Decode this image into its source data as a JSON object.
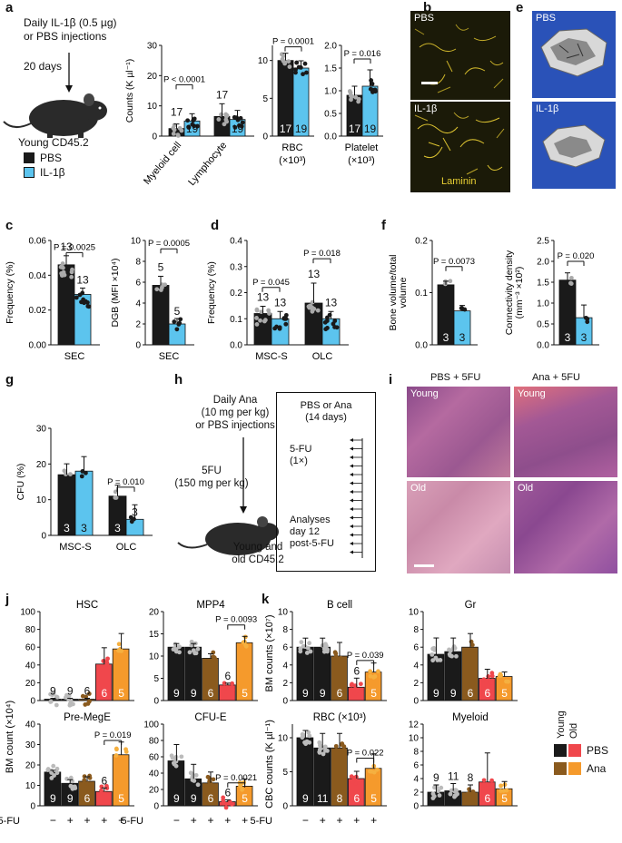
{
  "panels": {
    "a": "a",
    "b": "b",
    "e": "e",
    "c": "c",
    "d": "d",
    "f": "f",
    "g": "g",
    "h": "h",
    "i": "i",
    "j": "j",
    "k": "k"
  },
  "a_text": {
    "inj1": "Daily IL-1β (0.5 µg)",
    "inj2": "or PBS injections",
    "days": "20 days",
    "mouse": "Young CD45.2",
    "leg_pbs": "PBS",
    "leg_il1": "IL-1β"
  },
  "b_text": {
    "pbs": "PBS",
    "il1": "IL-1β",
    "laminin": "Laminin"
  },
  "e_text": {
    "pbs": "PBS",
    "il1": "IL-1β"
  },
  "h_text": {
    "l1": "Daily Ana",
    "l2": "(10 mg per kg)",
    "l3": "or PBS injections",
    "f1": "5FU",
    "f2": "(150 mg per kg)",
    "m1": "Young and",
    "m2": "old CD45.2",
    "box1": "PBS or Ana",
    "box2": "(14 days)",
    "box3": "5-FU",
    "box4": "(1×)",
    "box5": "Analyses",
    "box6": "day 12",
    "box7": "post-5-FU"
  },
  "i_text": {
    "pbs": "PBS + 5FU",
    "ana": "Ana + 5FU",
    "young1": "Young",
    "young2": "Young",
    "old1": "Old",
    "old2": "Old"
  },
  "legend_k": {
    "young": "Young",
    "old": "Old",
    "pbs": "PBS",
    "ana": "Ana"
  },
  "colors": {
    "pbs": "#1a1a1a",
    "il1": "#5cc4ee",
    "young_pbs": "#1a1a1a",
    "young_ana": "#8a5a1e",
    "old_pbs": "#f0474c",
    "old_ana": "#f59a2c"
  },
  "chart_data": [
    {
      "id": "a1",
      "type": "bar",
      "ylabel": "Counts (K µl⁻¹)",
      "ylim": [
        0,
        30
      ],
      "yticks": [
        0,
        10,
        20,
        30
      ],
      "categories": [
        "Myeloid cell",
        "Lymphocyte"
      ],
      "series": [
        {
          "name": "PBS",
          "values": [
            2.5,
            6.5
          ]
        },
        {
          "name": "IL-1β",
          "values": [
            5,
            5.5
          ]
        }
      ],
      "n_labels": [
        [
          "17",
          "19"
        ],
        [
          "17",
          "19"
        ]
      ],
      "p": "P < 0.0001"
    },
    {
      "id": "a2",
      "type": "bar",
      "xlabel": "RBC (×10³)",
      "ylim": [
        0,
        12
      ],
      "yticks": [
        0,
        5,
        10
      ],
      "series": [
        {
          "name": "PBS",
          "values": [
            10
          ]
        },
        {
          "name": "IL-1β",
          "values": [
            9
          ]
        }
      ],
      "n_labels": [
        "17",
        "19"
      ],
      "p": "P = 0.0001"
    },
    {
      "id": "a3",
      "type": "bar",
      "xlabel": "Platelet (×10³)",
      "ylim": [
        0,
        2
      ],
      "yticks": [
        0,
        0.5,
        1.0,
        1.5,
        2.0
      ],
      "series": [
        {
          "name": "PBS",
          "values": [
            0.9
          ]
        },
        {
          "name": "IL-1β",
          "values": [
            1.1
          ]
        }
      ],
      "n_labels": [
        "17",
        "19"
      ],
      "p": "P = 0.016"
    },
    {
      "id": "c1",
      "type": "bar",
      "ylabel": "Frequency (%)",
      "xlabel": "SEC",
      "ylim": [
        0,
        0.06
      ],
      "yticks": [
        0,
        0.02,
        0.04,
        0.06
      ],
      "series": [
        {
          "name": "PBS",
          "values": [
            0.046
          ]
        },
        {
          "name": "IL-1β",
          "values": [
            0.029
          ]
        }
      ],
      "n_labels": [
        "13",
        "13"
      ],
      "p": "P = 0.0025"
    },
    {
      "id": "c2",
      "type": "bar",
      "ylabel": "DGB (MFI ×10⁴)",
      "xlabel": "SEC",
      "ylim": [
        0,
        10
      ],
      "yticks": [
        0,
        2,
        4,
        6,
        8,
        10
      ],
      "series": [
        {
          "name": "PBS",
          "values": [
            5.7
          ]
        },
        {
          "name": "IL-1β",
          "values": [
            2.0
          ]
        }
      ],
      "n_labels": [
        "5",
        "5"
      ],
      "p": "P = 0.0005"
    },
    {
      "id": "d",
      "type": "bar",
      "ylabel": "Frequency (%)",
      "ylim": [
        0,
        0.4
      ],
      "yticks": [
        0,
        0.1,
        0.2,
        0.3,
        0.4
      ],
      "categories": [
        "MSC-S",
        "OLC"
      ],
      "series": [
        {
          "name": "PBS",
          "values": [
            0.12,
            0.16
          ]
        },
        {
          "name": "IL-1β",
          "values": [
            0.1,
            0.1
          ]
        }
      ],
      "n_labels": [
        [
          "13",
          "13"
        ],
        [
          "13",
          "13"
        ]
      ],
      "p": [
        "P = 0.045",
        "P = 0.018"
      ]
    },
    {
      "id": "f1",
      "type": "bar",
      "ylabel": "Bone volume/total volume",
      "ylim": [
        0,
        0.2
      ],
      "yticks": [
        0,
        0.1,
        0.2
      ],
      "series": [
        {
          "name": "PBS",
          "values": [
            0.115
          ]
        },
        {
          "name": "IL-1β",
          "values": [
            0.065
          ]
        }
      ],
      "n_labels": [
        "3",
        "3"
      ],
      "p": "P = 0.0073"
    },
    {
      "id": "f2",
      "type": "bar",
      "ylabel": "Connectivity density (mm⁻³ ×10²)",
      "ylim": [
        0,
        2.5
      ],
      "yticks": [
        0,
        0.5,
        1.0,
        1.5,
        2.0,
        2.5
      ],
      "series": [
        {
          "name": "PBS",
          "values": [
            1.55
          ]
        },
        {
          "name": "IL-1β",
          "values": [
            0.65
          ]
        }
      ],
      "n_labels": [
        "3",
        "3"
      ],
      "p": "P = 0.020"
    },
    {
      "id": "g",
      "type": "bar",
      "ylabel": "CFU (%)",
      "ylim": [
        0,
        30
      ],
      "yticks": [
        0,
        10,
        20,
        30
      ],
      "categories": [
        "MSC-S",
        "OLC"
      ],
      "series": [
        {
          "name": "PBS",
          "values": [
            17,
            11
          ]
        },
        {
          "name": "IL-1β",
          "values": [
            18,
            4.5
          ]
        }
      ],
      "n_labels": [
        [
          "3",
          "3"
        ],
        [
          "3",
          "3"
        ]
      ],
      "p": "P = 0.010"
    },
    {
      "id": "j1",
      "type": "bar",
      "title": "HSC",
      "ylim": [
        0,
        100
      ],
      "yticks": [
        0,
        20,
        40,
        60,
        80,
        100
      ],
      "values": [
        1.5,
        1.5,
        1.5,
        41,
        58
      ],
      "n_labels": [
        "9",
        "9",
        "6",
        "6",
        "5"
      ]
    },
    {
      "id": "j2",
      "type": "bar",
      "title": "MPP4",
      "ylim": [
        0,
        20
      ],
      "yticks": [
        0,
        5,
        10,
        15,
        20
      ],
      "values": [
        12,
        12,
        9.5,
        3.5,
        13
      ],
      "n_labels": [
        "9",
        "9",
        "6",
        "6",
        "5"
      ],
      "p": "P = 0.0093"
    },
    {
      "id": "j3",
      "type": "bar",
      "title": "Pre-MegE",
      "ylim": [
        0,
        40
      ],
      "yticks": [
        0,
        10,
        20,
        30,
        40
      ],
      "values": [
        16.5,
        11,
        12,
        7,
        25
      ],
      "n_labels": [
        "9",
        "9",
        "6",
        "6",
        "5"
      ],
      "p": "P = 0.019"
    },
    {
      "id": "j4",
      "type": "bar",
      "title": "CFU-E",
      "ylim": [
        0,
        100
      ],
      "yticks": [
        0,
        20,
        40,
        60,
        80,
        100
      ],
      "values": [
        55,
        33,
        28,
        5,
        24
      ],
      "n_labels": [
        "9",
        "9",
        "6",
        "6",
        "5"
      ],
      "p": "P = 0.0021"
    },
    {
      "id": "k1",
      "type": "bar",
      "title": "B cell",
      "ylim": [
        0,
        10
      ],
      "yticks": [
        0,
        2,
        4,
        6,
        8,
        10
      ],
      "values": [
        6,
        6,
        5,
        1.5,
        3.2
      ],
      "n_labels": [
        "9",
        "9",
        "6",
        "6",
        "5"
      ],
      "p": "P = 0.039"
    },
    {
      "id": "k2",
      "type": "bar",
      "title": "Gr",
      "ylim": [
        0,
        10
      ],
      "yticks": [
        0,
        2,
        4,
        6,
        8,
        10
      ],
      "values": [
        5.2,
        5.5,
        6,
        2.5,
        2.7
      ],
      "n_labels": [
        "9",
        "9",
        "6",
        "6",
        "5"
      ]
    },
    {
      "id": "k3",
      "type": "bar",
      "title": "RBC (×10³)",
      "ylim": [
        0,
        12
      ],
      "yticks": [
        0,
        5,
        10
      ],
      "values": [
        10,
        8.5,
        8.5,
        4,
        5.5
      ],
      "n_labels": [
        "9",
        "11",
        "8",
        "6",
        "5"
      ],
      "p": "P = 0.022"
    },
    {
      "id": "k4",
      "type": "bar",
      "title": "Myeloid",
      "ylim": [
        0,
        12
      ],
      "yticks": [
        0,
        2,
        4,
        6,
        8,
        10,
        12
      ],
      "values": [
        2,
        2.2,
        2,
        3.5,
        2.5
      ],
      "n_labels": [
        "9",
        "11",
        "8",
        "6",
        "5"
      ]
    }
  ],
  "axis_texts": {
    "j_ylabel": "BM count (×10⁴)",
    "k_ylabel1": "BM counts (×10⁷)",
    "k_ylabel2": "CBC counts (K µl⁻¹)",
    "fu": "5-FU",
    "fu_marks": [
      "−",
      "+",
      "+",
      "+",
      "+"
    ]
  }
}
